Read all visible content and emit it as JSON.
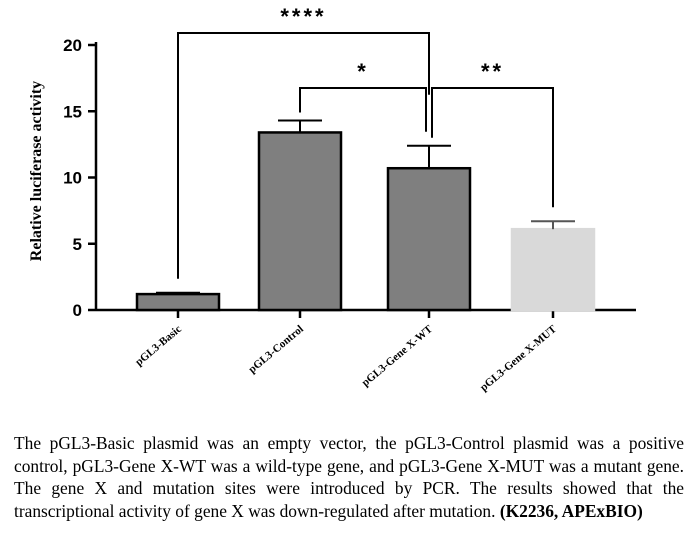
{
  "chart_data": {
    "type": "bar",
    "categories": [
      "pGL3-Basic",
      "pGL3-Control",
      "pGL3-Gene X-WT",
      "pGL3-Gene X-MUT"
    ],
    "values": [
      1.2,
      13.4,
      10.7,
      6.1
    ],
    "errors": [
      0.1,
      0.9,
      1.7,
      0.6
    ],
    "bar_colors": [
      "#7f7f7f",
      "#7f7f7f",
      "#7f7f7f",
      "#d9d9d9"
    ],
    "ylabel": "Relative luciferase activity",
    "xlabel": "",
    "ylim": [
      0,
      20
    ],
    "yticks": [
      0,
      5,
      10,
      15,
      20
    ],
    "significance": [
      {
        "from": 0,
        "to": 2,
        "label": "****"
      },
      {
        "from": 1,
        "to": 2,
        "label": "*"
      },
      {
        "from": 2,
        "to": 3,
        "label": "**"
      }
    ],
    "grid": false
  },
  "caption": {
    "text": "The pGL3-Basic plasmid was an empty vector, the pGL3-Control plasmid was a positive control, pGL3-Gene X-WT was a wild-type gene, and pGL3-Gene X-MUT was a mutant gene. The gene X and mutation sites were introduced by PCR. The results showed that the transcriptional activity of gene X was down-regulated after mutation. ",
    "source": "(K2236, APExBIO)"
  }
}
